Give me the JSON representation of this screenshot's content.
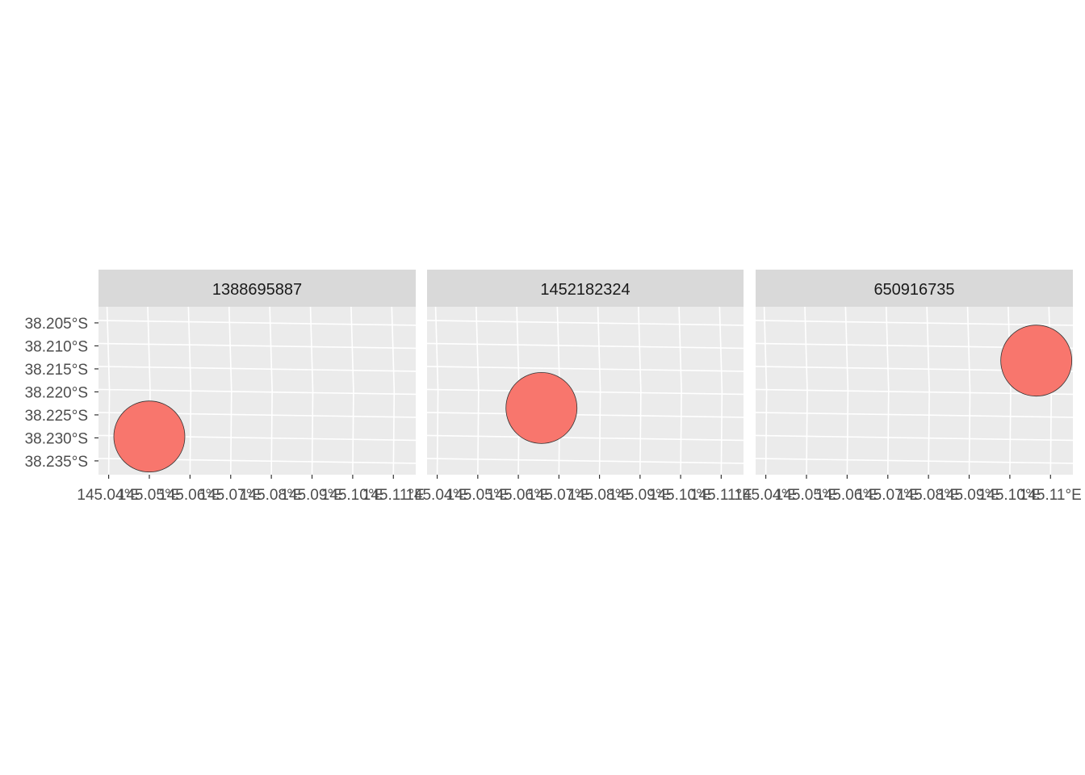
{
  "chart_data": {
    "type": "scatter",
    "title": "",
    "xlabel": "",
    "ylabel": "",
    "facets": [
      "1388695887",
      "1452182324",
      "650916735"
    ],
    "x_ticks": [
      "145.04°E",
      "145.05°E",
      "145.06°E",
      "145.07°E",
      "145.08°E",
      "145.09°E",
      "145.10°E",
      "145.11°E"
    ],
    "y_ticks": [
      "38.205°S",
      "38.210°S",
      "38.215°S",
      "38.220°S",
      "38.225°S",
      "38.230°S",
      "38.235°S"
    ],
    "xlim": [
      145.0375,
      145.1155
    ],
    "ylim": [
      -38.238,
      -38.2015
    ],
    "grid": true,
    "legend": "none",
    "point_color": "#f8766d",
    "point_outline": "#333333",
    "panel_background": "#ebebeb",
    "strip_background": "#d9d9d9",
    "grid_color": "#ffffff",
    "points": [
      {
        "facet": "1388695887",
        "lon": 145.05,
        "lat": -38.2297
      },
      {
        "facet": "1452182324",
        "lon": 145.0657,
        "lat": -38.2235
      },
      {
        "facet": "650916735",
        "lon": 145.1065,
        "lat": -38.2132
      }
    ]
  }
}
